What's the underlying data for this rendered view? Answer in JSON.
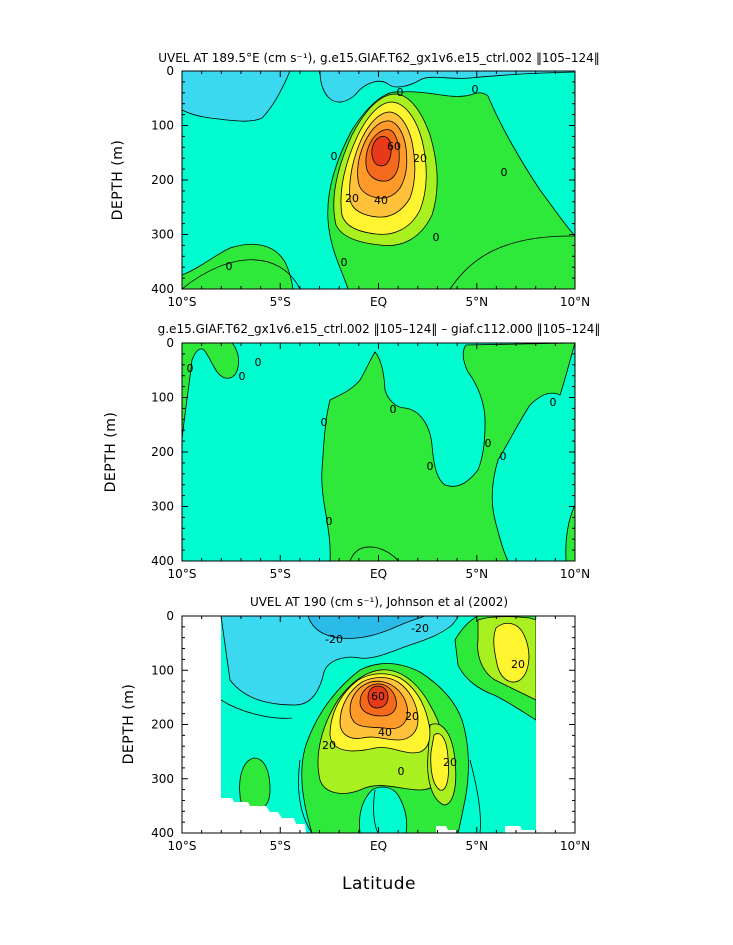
{
  "colors": {
    "lt_blue": "#3ad9f0",
    "cyan": "#00fccf",
    "green": "#2ee83a",
    "lime": "#a8f020",
    "yellow": "#fff430",
    "lt_orange": "#ffc23a",
    "orange": "#ff9a2a",
    "red_orange": "#f46a1c",
    "red": "#e8391a"
  },
  "chart_data": [
    {
      "type": "contour",
      "title": "UVEL AT 189.5°E (cm s⁻¹), g.e15.GIAF.T62_gx1v6.e15_ctrl.002 ‖105–124‖",
      "ylabel": "DEPTH (m)",
      "xlabel": "",
      "x_ticks": [
        "10°S",
        "5°S",
        "EQ",
        "5°N",
        "10°N"
      ],
      "y_ticks": [
        "0",
        "100",
        "200",
        "300",
        "400"
      ],
      "xlim": [
        -10,
        10
      ],
      "ylim": [
        400,
        0
      ],
      "contour_labels": [
        "0",
        "0",
        "0",
        "0",
        "0",
        "0",
        "0",
        "20",
        "20",
        "40",
        "60"
      ],
      "max_value_approx": 60,
      "core_latitude": 0,
      "core_depth_m": 150
    },
    {
      "type": "contour",
      "title": "g.e15.GIAF.T62_gx1v6.e15_ctrl.002 ‖105–124‖ – giaf.c112.000 ‖105–124‖",
      "ylabel": "DEPTH (m)",
      "xlabel": "",
      "x_ticks": [
        "10°S",
        "5°S",
        "EQ",
        "5°N",
        "10°N"
      ],
      "y_ticks": [
        "0",
        "100",
        "200",
        "300",
        "400"
      ],
      "xlim": [
        -10,
        10
      ],
      "ylim": [
        400,
        0
      ],
      "contour_labels": [
        "0",
        "0",
        "0",
        "0",
        "0",
        "0",
        "0",
        "0",
        "0",
        "0"
      ]
    },
    {
      "type": "contour",
      "title": "UVEL AT 190 (cm s⁻¹), Johnson et al (2002)",
      "ylabel": "DEPTH (m)",
      "xlabel": "Latitude",
      "x_ticks": [
        "10°S",
        "5°S",
        "EQ",
        "5°N",
        "10°N"
      ],
      "y_ticks": [
        "0",
        "100",
        "200",
        "300",
        "400"
      ],
      "xlim": [
        -10,
        10
      ],
      "ylim": [
        400,
        0
      ],
      "data_xrange": [
        -8,
        8
      ],
      "contour_labels": [
        "-20",
        "-20",
        "0",
        "20",
        "20",
        "20",
        "20",
        "40",
        "60"
      ],
      "max_value_approx": 60,
      "core_latitude": 0,
      "core_depth_m": 150
    }
  ]
}
